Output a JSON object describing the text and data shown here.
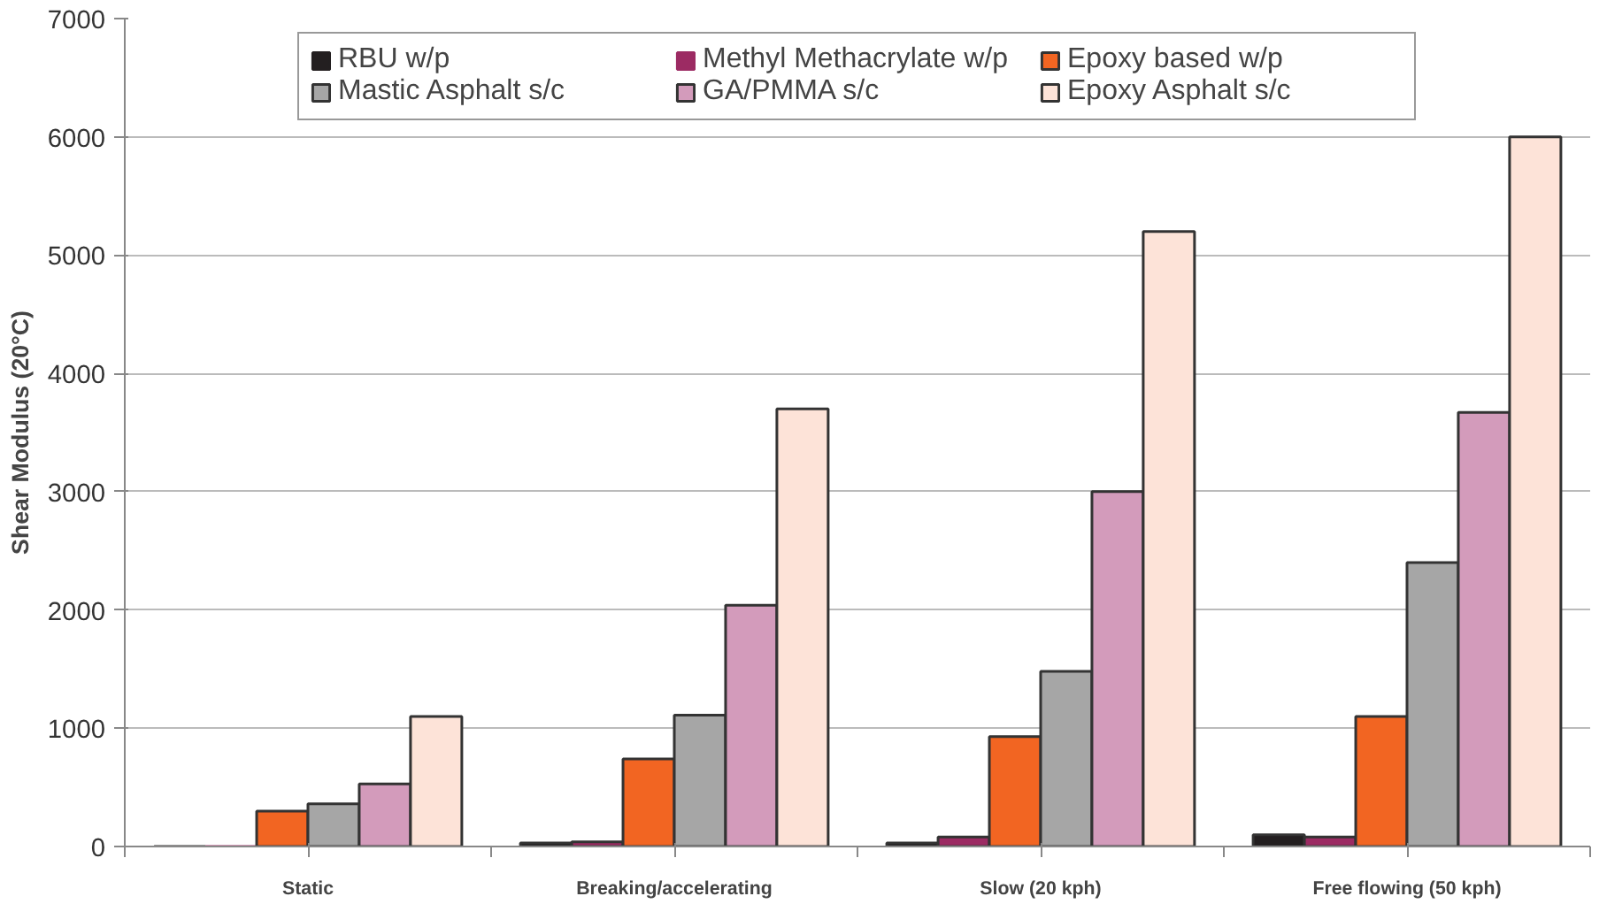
{
  "chart_data": {
    "type": "bar",
    "ylabel": "Shear Modulus (20°C)",
    "categories": [
      "Static",
      "Breaking/accelerating",
      "Slow (20 kph)",
      "Free flowing (50 kph)"
    ],
    "series": [
      {
        "name": "RBU w/p",
        "color": "#231f20",
        "values": [
          0,
          30,
          30,
          100
        ]
      },
      {
        "name": "Methyl Methacrylate w/p",
        "color": "#9c2b63",
        "values": [
          0,
          40,
          80,
          80
        ]
      },
      {
        "name": "Epoxy based w/p",
        "color": "#f26522",
        "values": [
          300,
          740,
          930,
          1100
        ]
      },
      {
        "name": "Mastic Asphalt s/c",
        "color": "#a6a6a6",
        "values": [
          360,
          1110,
          1480,
          2400
        ]
      },
      {
        "name": "GA/PMMA s/c",
        "color": "#d39bbb",
        "values": [
          530,
          2040,
          3000,
          3670
        ]
      },
      {
        "name": "Epoxy Asphalt s/c",
        "color": "#fde3d8",
        "values": [
          1100,
          3700,
          5200,
          6000
        ]
      }
    ],
    "ylim": [
      0,
      7000
    ],
    "yticks": [
      0,
      1000,
      2000,
      3000,
      4000,
      5000,
      6000,
      7000
    ],
    "grid": "y",
    "legend": "top"
  }
}
